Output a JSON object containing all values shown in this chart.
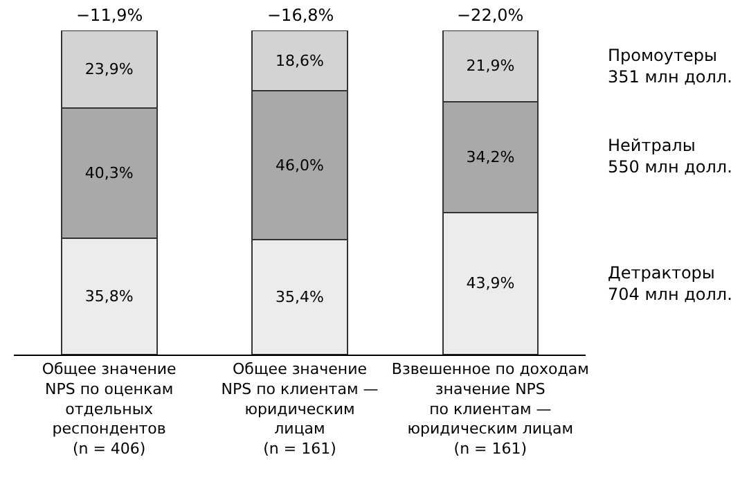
{
  "chart_data": {
    "type": "bar",
    "stacked": true,
    "categories": [
      "Общее значение\nNPS по оценкам\nотдельных\nреспондентов\n(n = 406)",
      "Общее значение\nNPS по клиентам —\nюридическим\nлицам\n(n = 161)",
      "Взвешенное по доходам\nзначение NPS\nпо клиентам —\nюридическим лицам\n(n = 161)"
    ],
    "series": [
      {
        "name": "Детракторы\n704 млн долл.",
        "color": "#ececec",
        "values": [
          35.8,
          35.4,
          43.9
        ],
        "value_labels": [
          "35,8%",
          "35,4%",
          "43,9%"
        ]
      },
      {
        "name": "Нейтралы\n550 млн долл.",
        "color": "#a9a9a9",
        "values": [
          40.3,
          46.0,
          34.2
        ],
        "value_labels": [
          "40,3%",
          "46,0%",
          "34,2%"
        ]
      },
      {
        "name": "Промоутеры\n351 млн долл.",
        "color": "#d3d3d3",
        "values": [
          23.9,
          18.6,
          21.9
        ],
        "value_labels": [
          "23,9%",
          "18,6%",
          "21,9%"
        ]
      }
    ],
    "annotations": [
      {
        "text": "−11,9%",
        "x": "Общее значение\nNPS по оценкам\nотдельных\nреспондентов\n(n = 406)",
        "y": 100
      },
      {
        "text": "−16,8%",
        "x": "Общее значение\nNPS по клиентам —\nюридическим\nлицам\n(n = 161)",
        "y": 100
      },
      {
        "text": "−22,0%",
        "x": "Взвешенное по доходам\nзначение NPS\nпо клиентам —\nюридическим лицам\n(n = 161)",
        "y": 100
      }
    ]
  }
}
